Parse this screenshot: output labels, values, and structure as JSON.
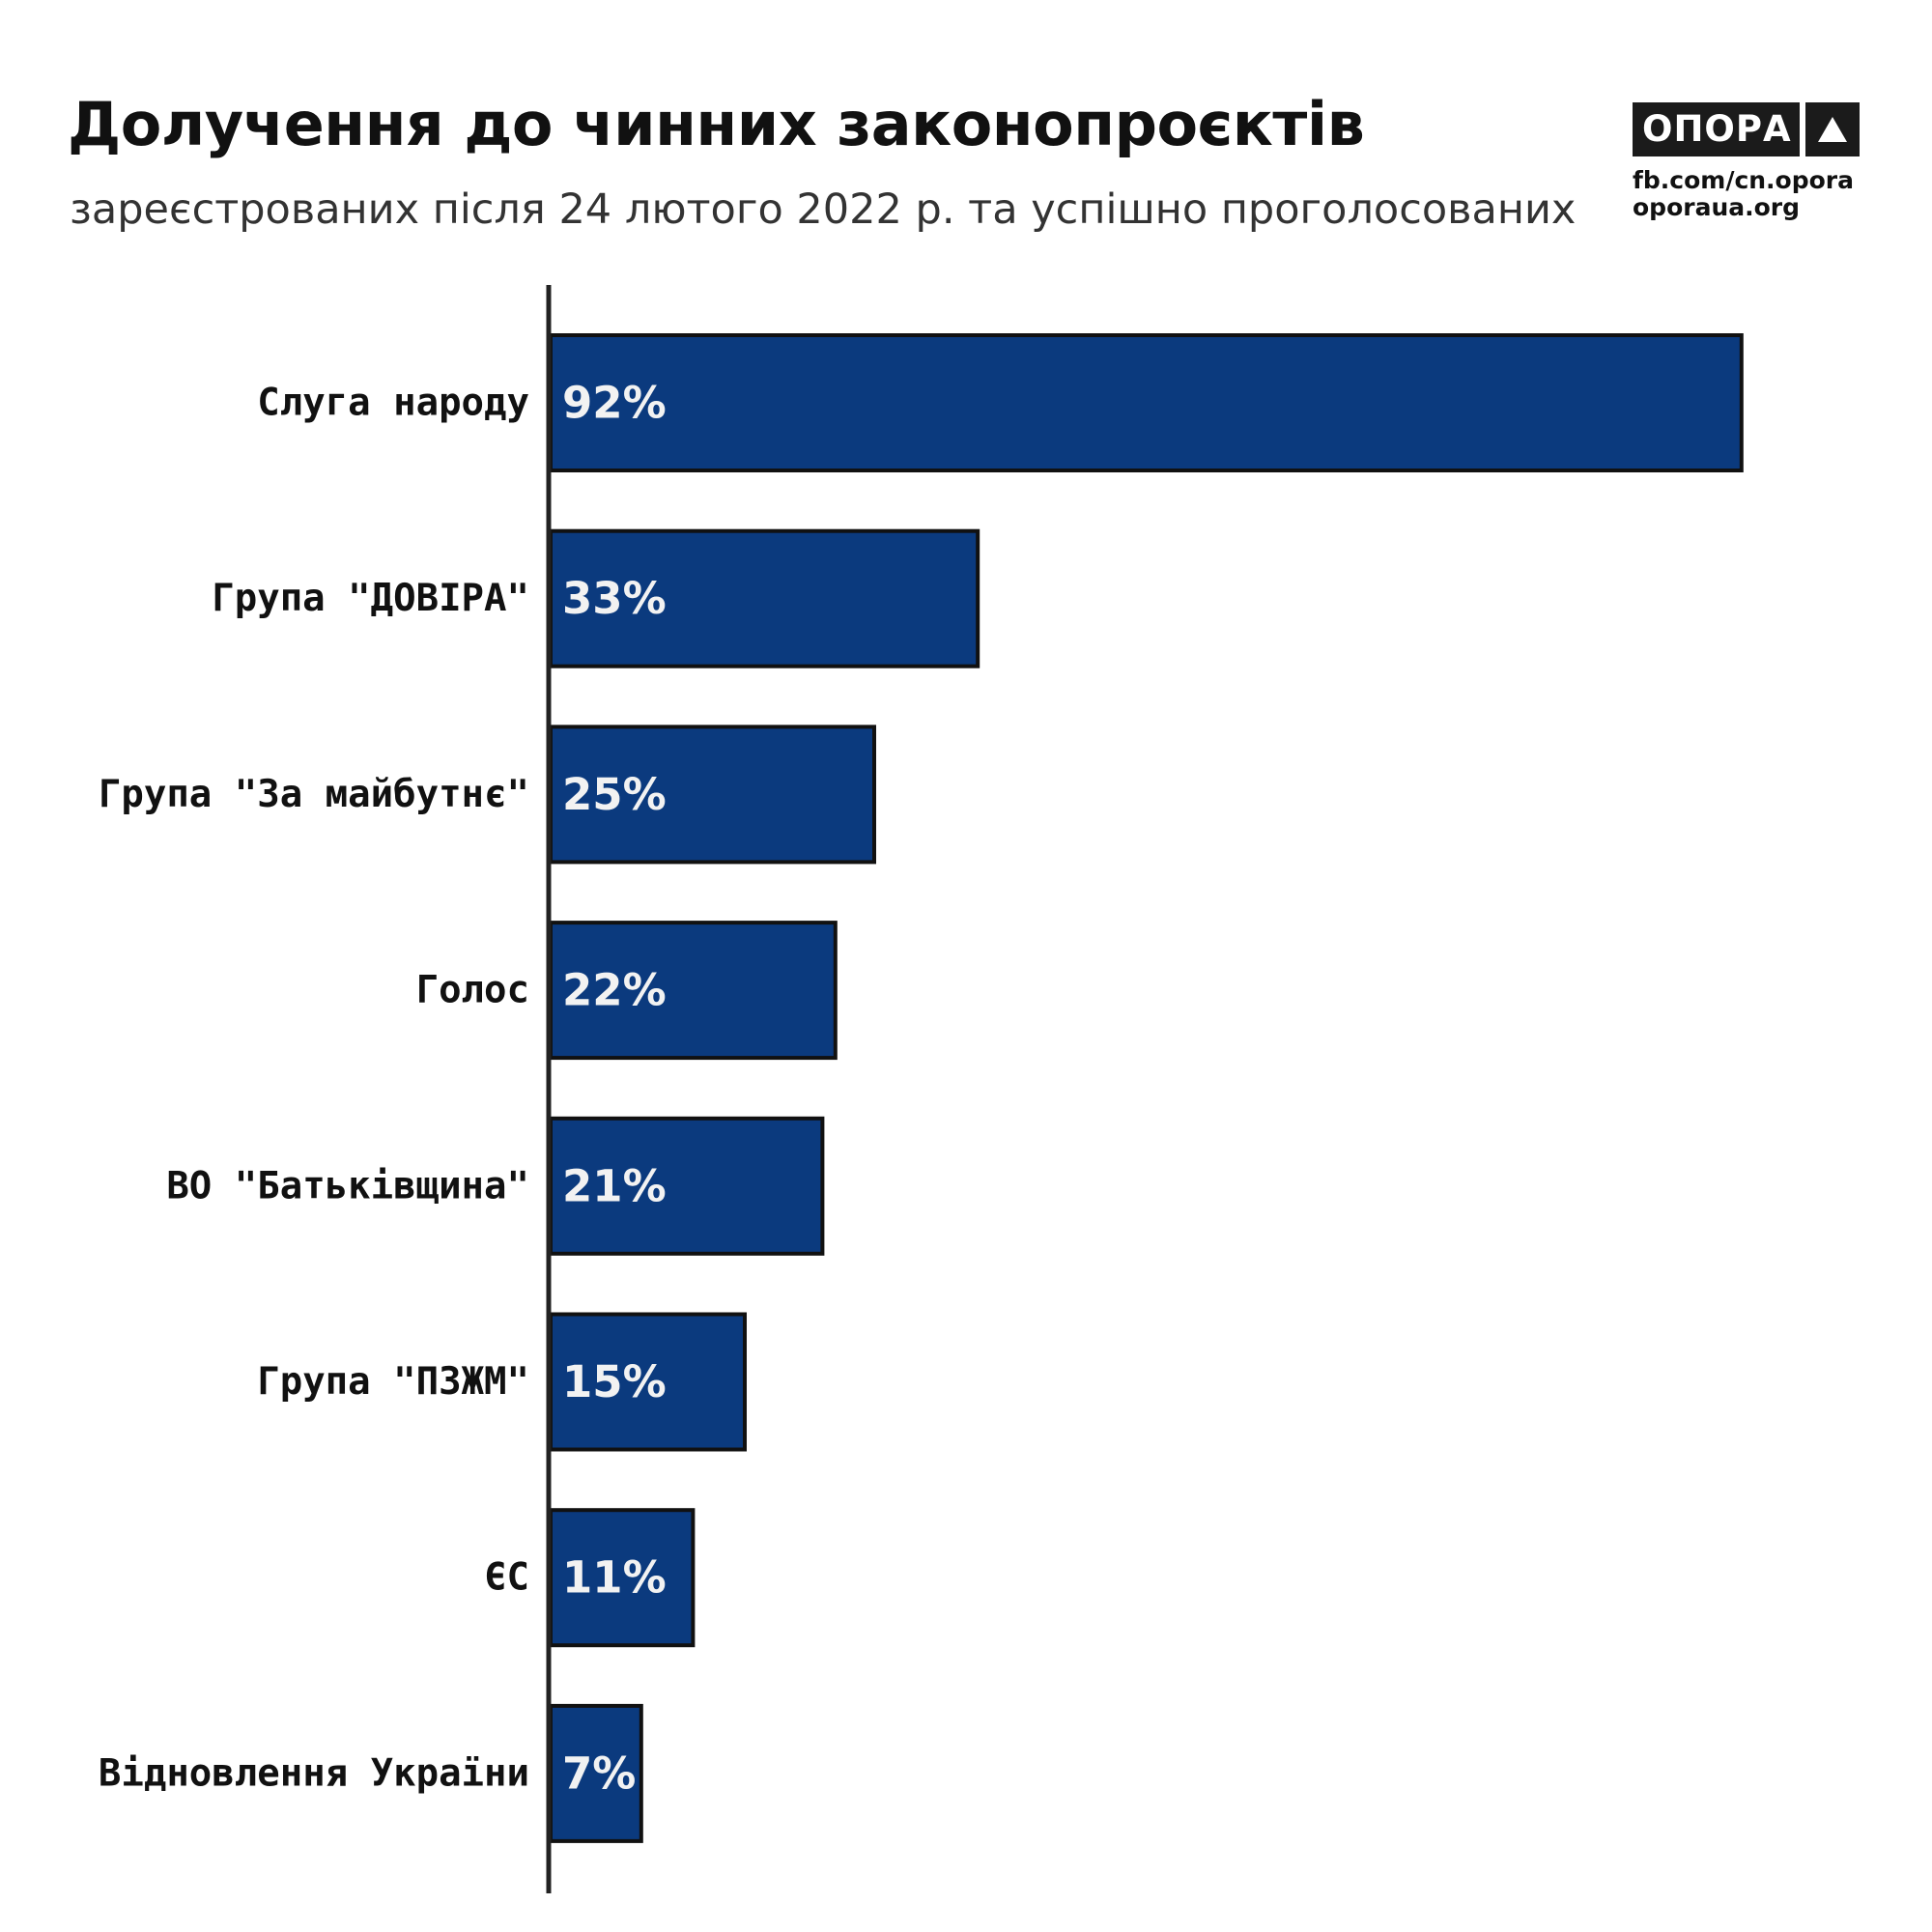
{
  "header": {
    "title": "Долучення до чинних законопроєктів",
    "subtitle": "зареєстрованих після 24 лютого 2022 р. та успішно проголосованих"
  },
  "logo": {
    "name": "ОПОРА",
    "mark_icon": "triangle-icon",
    "link_facebook": "fb.com/cn.opora",
    "link_site": "oporaua.org"
  },
  "colors": {
    "bar_fill": "#0b3a7e",
    "bar_stroke": "#111111",
    "axis": "#222222",
    "value_text": "#f2f2f2"
  },
  "chart_data": {
    "type": "bar",
    "orientation": "horizontal",
    "categories": [
      "Слуга народу",
      "Група \"ДОВІРА\"",
      "Група \"За майбутнє\"",
      "Голос",
      "ВО \"Батьківщина\"",
      "Група \"ПЗЖМ\"",
      "ЄС",
      "Відновлення України"
    ],
    "values": [
      92,
      33,
      25,
      22,
      21,
      15,
      11,
      7
    ],
    "value_labels": [
      "92%",
      "33%",
      "25%",
      "22%",
      "21%",
      "15%",
      "11%",
      "7%"
    ],
    "title": "Долучення до чинних законопроєктів",
    "subtitle": "зареєстрованих після 24 лютого 2022 р. та успішно проголосованих",
    "xlabel": "",
    "ylabel": "",
    "xlim": [
      0,
      100
    ],
    "grid": false,
    "legend": "none"
  }
}
